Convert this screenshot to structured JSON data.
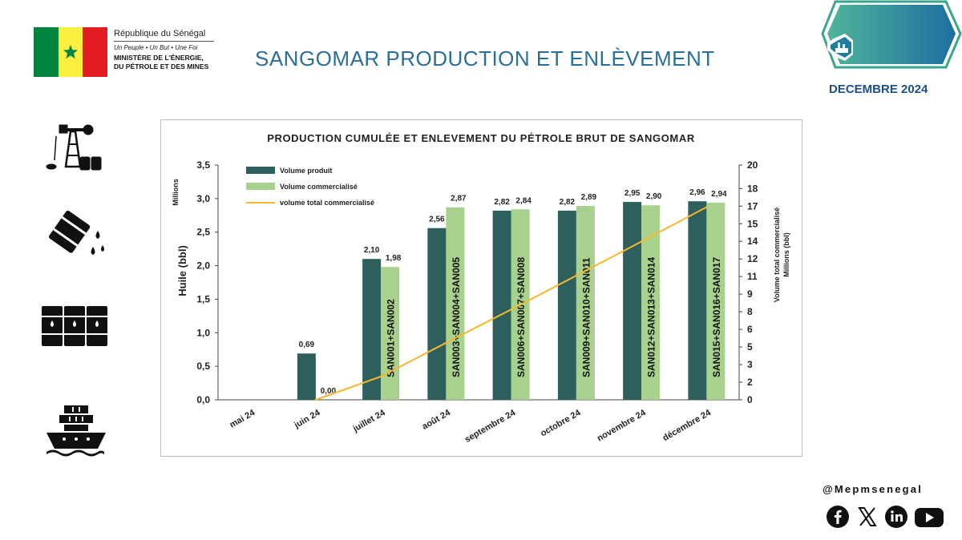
{
  "header": {
    "country": "République du Sénégal",
    "motto": "Un Peuple  •  Un But  •  Une Foi",
    "ministry_line1": "MINISTÈRE DE L'ÉNERGIE,",
    "ministry_line2": "DU PÉTROLE ET DES MINES",
    "page_title": "SANGOMAR  PRODUCTION ET ENLÈVEMENT",
    "date_badge": "DECEMBRE 2024",
    "flag_colors": [
      "#00853f",
      "#fdef42",
      "#e31b23"
    ]
  },
  "sidebar_icons": [
    "oil-derrick-icon",
    "oil-barrel-spill-icon",
    "oil-barrels-stack-icon",
    "cargo-ship-icon"
  ],
  "social": {
    "handle": "@Mepmsenegal",
    "icons": [
      "facebook-icon",
      "x-icon",
      "linkedin-icon",
      "youtube-icon"
    ]
  },
  "colors": {
    "produced": "#2d5f5d",
    "sold": "#a9d18e",
    "cumulative": "#f5b82e",
    "title_blue": "#2a6f97",
    "badge_teal": "#1d8f8a"
  },
  "chart_data": {
    "type": "bar",
    "title": "PRODUCTION CUMULÉE ET ENLEVEMENT DU PÉTROLE BRUT DE SANGOMAR",
    "categories": [
      "mai 24",
      "juin 24",
      "juillet 24",
      "août 24",
      "septembre 24",
      "octobre 24",
      "novembre 24",
      "décembre 24"
    ],
    "series": [
      {
        "name": "Volume produit",
        "type": "bar",
        "axis": "left",
        "values": [
          null,
          0.69,
          2.1,
          2.56,
          2.82,
          2.82,
          2.95,
          2.96
        ],
        "labels": [
          "",
          "0,69",
          "2,10",
          "2,56",
          "2,82",
          "2,82",
          "2,95",
          "2,96"
        ]
      },
      {
        "name": "Volume commercialisé",
        "type": "bar",
        "axis": "left",
        "values": [
          null,
          0.0,
          1.98,
          2.87,
          2.84,
          2.89,
          2.9,
          2.94
        ],
        "labels": [
          "",
          "0,00",
          "1,98",
          "2,87",
          "2,84",
          "2,89",
          "2,90",
          "2,94"
        ]
      },
      {
        "name": "volume total commercialisé",
        "type": "line",
        "axis": "right",
        "values": [
          null,
          0.0,
          1.98,
          4.85,
          7.69,
          10.58,
          13.48,
          16.42
        ]
      }
    ],
    "cargo_labels": [
      "",
      "",
      "SAN001+SAN002",
      "SAN003+SAN004+SAN005",
      "SAN006+SAN007+SAN008",
      "SAN009+SAN010+SAN011",
      "SAN012+SAN013+SAN014",
      "SAN015+SAN016+SAN017"
    ],
    "ylabel": "Huile (bbl)",
    "yunit": "Millions",
    "ylim": [
      0,
      3.5
    ],
    "yticks": [
      "0,0",
      "0,5",
      "1,0",
      "1,5",
      "2,0",
      "2,5",
      "3,0",
      "3,5"
    ],
    "y2label_line1": "Volume total commercialisé",
    "y2label_line2": "Millions (bbl)",
    "y2lim": [
      0,
      20
    ],
    "y2ticks": [
      "0",
      "2",
      "3",
      "5",
      "6",
      "8",
      "9",
      "11",
      "12",
      "14",
      "15",
      "17",
      "18",
      "20"
    ],
    "y2tick_values": [
      0,
      1.5,
      3,
      4.5,
      6,
      7.5,
      9,
      10.5,
      12,
      13.5,
      15,
      16.5,
      18,
      20
    ],
    "legend_position": "top-left",
    "grid": false
  }
}
